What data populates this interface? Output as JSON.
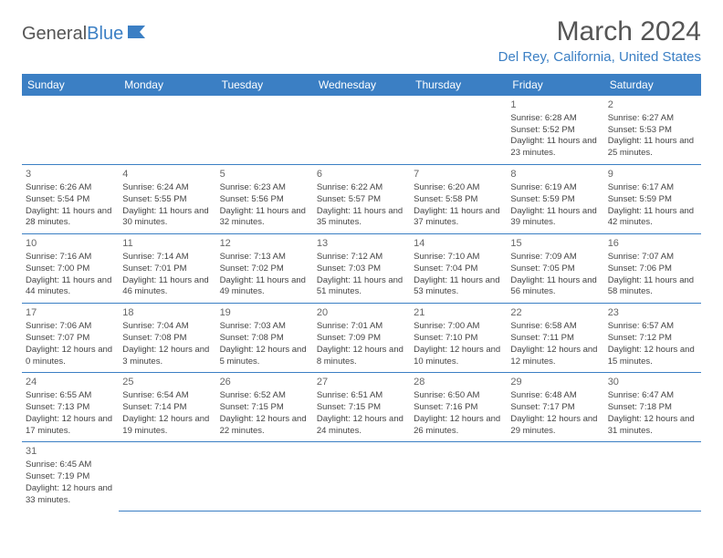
{
  "logo": {
    "text_general": "General",
    "text_blue": "Blue"
  },
  "title": "March 2024",
  "location": "Del Rey, California, United States",
  "colors": {
    "header_bg": "#3b7fc4",
    "header_text": "#ffffff",
    "cell_border": "#3b7fc4",
    "body_bg": "#ffffff",
    "text": "#444444",
    "title_text": "#555555"
  },
  "weekdays": [
    "Sunday",
    "Monday",
    "Tuesday",
    "Wednesday",
    "Thursday",
    "Friday",
    "Saturday"
  ],
  "weeks": [
    [
      null,
      null,
      null,
      null,
      null,
      {
        "n": "1",
        "sr": "Sunrise: 6:28 AM",
        "ss": "Sunset: 5:52 PM",
        "dl": "Daylight: 11 hours and 23 minutes."
      },
      {
        "n": "2",
        "sr": "Sunrise: 6:27 AM",
        "ss": "Sunset: 5:53 PM",
        "dl": "Daylight: 11 hours and 25 minutes."
      }
    ],
    [
      {
        "n": "3",
        "sr": "Sunrise: 6:26 AM",
        "ss": "Sunset: 5:54 PM",
        "dl": "Daylight: 11 hours and 28 minutes."
      },
      {
        "n": "4",
        "sr": "Sunrise: 6:24 AM",
        "ss": "Sunset: 5:55 PM",
        "dl": "Daylight: 11 hours and 30 minutes."
      },
      {
        "n": "5",
        "sr": "Sunrise: 6:23 AM",
        "ss": "Sunset: 5:56 PM",
        "dl": "Daylight: 11 hours and 32 minutes."
      },
      {
        "n": "6",
        "sr": "Sunrise: 6:22 AM",
        "ss": "Sunset: 5:57 PM",
        "dl": "Daylight: 11 hours and 35 minutes."
      },
      {
        "n": "7",
        "sr": "Sunrise: 6:20 AM",
        "ss": "Sunset: 5:58 PM",
        "dl": "Daylight: 11 hours and 37 minutes."
      },
      {
        "n": "8",
        "sr": "Sunrise: 6:19 AM",
        "ss": "Sunset: 5:59 PM",
        "dl": "Daylight: 11 hours and 39 minutes."
      },
      {
        "n": "9",
        "sr": "Sunrise: 6:17 AM",
        "ss": "Sunset: 5:59 PM",
        "dl": "Daylight: 11 hours and 42 minutes."
      }
    ],
    [
      {
        "n": "10",
        "sr": "Sunrise: 7:16 AM",
        "ss": "Sunset: 7:00 PM",
        "dl": "Daylight: 11 hours and 44 minutes."
      },
      {
        "n": "11",
        "sr": "Sunrise: 7:14 AM",
        "ss": "Sunset: 7:01 PM",
        "dl": "Daylight: 11 hours and 46 minutes."
      },
      {
        "n": "12",
        "sr": "Sunrise: 7:13 AM",
        "ss": "Sunset: 7:02 PM",
        "dl": "Daylight: 11 hours and 49 minutes."
      },
      {
        "n": "13",
        "sr": "Sunrise: 7:12 AM",
        "ss": "Sunset: 7:03 PM",
        "dl": "Daylight: 11 hours and 51 minutes."
      },
      {
        "n": "14",
        "sr": "Sunrise: 7:10 AM",
        "ss": "Sunset: 7:04 PM",
        "dl": "Daylight: 11 hours and 53 minutes."
      },
      {
        "n": "15",
        "sr": "Sunrise: 7:09 AM",
        "ss": "Sunset: 7:05 PM",
        "dl": "Daylight: 11 hours and 56 minutes."
      },
      {
        "n": "16",
        "sr": "Sunrise: 7:07 AM",
        "ss": "Sunset: 7:06 PM",
        "dl": "Daylight: 11 hours and 58 minutes."
      }
    ],
    [
      {
        "n": "17",
        "sr": "Sunrise: 7:06 AM",
        "ss": "Sunset: 7:07 PM",
        "dl": "Daylight: 12 hours and 0 minutes."
      },
      {
        "n": "18",
        "sr": "Sunrise: 7:04 AM",
        "ss": "Sunset: 7:08 PM",
        "dl": "Daylight: 12 hours and 3 minutes."
      },
      {
        "n": "19",
        "sr": "Sunrise: 7:03 AM",
        "ss": "Sunset: 7:08 PM",
        "dl": "Daylight: 12 hours and 5 minutes."
      },
      {
        "n": "20",
        "sr": "Sunrise: 7:01 AM",
        "ss": "Sunset: 7:09 PM",
        "dl": "Daylight: 12 hours and 8 minutes."
      },
      {
        "n": "21",
        "sr": "Sunrise: 7:00 AM",
        "ss": "Sunset: 7:10 PM",
        "dl": "Daylight: 12 hours and 10 minutes."
      },
      {
        "n": "22",
        "sr": "Sunrise: 6:58 AM",
        "ss": "Sunset: 7:11 PM",
        "dl": "Daylight: 12 hours and 12 minutes."
      },
      {
        "n": "23",
        "sr": "Sunrise: 6:57 AM",
        "ss": "Sunset: 7:12 PM",
        "dl": "Daylight: 12 hours and 15 minutes."
      }
    ],
    [
      {
        "n": "24",
        "sr": "Sunrise: 6:55 AM",
        "ss": "Sunset: 7:13 PM",
        "dl": "Daylight: 12 hours and 17 minutes."
      },
      {
        "n": "25",
        "sr": "Sunrise: 6:54 AM",
        "ss": "Sunset: 7:14 PM",
        "dl": "Daylight: 12 hours and 19 minutes."
      },
      {
        "n": "26",
        "sr": "Sunrise: 6:52 AM",
        "ss": "Sunset: 7:15 PM",
        "dl": "Daylight: 12 hours and 22 minutes."
      },
      {
        "n": "27",
        "sr": "Sunrise: 6:51 AM",
        "ss": "Sunset: 7:15 PM",
        "dl": "Daylight: 12 hours and 24 minutes."
      },
      {
        "n": "28",
        "sr": "Sunrise: 6:50 AM",
        "ss": "Sunset: 7:16 PM",
        "dl": "Daylight: 12 hours and 26 minutes."
      },
      {
        "n": "29",
        "sr": "Sunrise: 6:48 AM",
        "ss": "Sunset: 7:17 PM",
        "dl": "Daylight: 12 hours and 29 minutes."
      },
      {
        "n": "30",
        "sr": "Sunrise: 6:47 AM",
        "ss": "Sunset: 7:18 PM",
        "dl": "Daylight: 12 hours and 31 minutes."
      }
    ],
    [
      {
        "n": "31",
        "sr": "Sunrise: 6:45 AM",
        "ss": "Sunset: 7:19 PM",
        "dl": "Daylight: 12 hours and 33 minutes."
      },
      null,
      null,
      null,
      null,
      null,
      null
    ]
  ]
}
